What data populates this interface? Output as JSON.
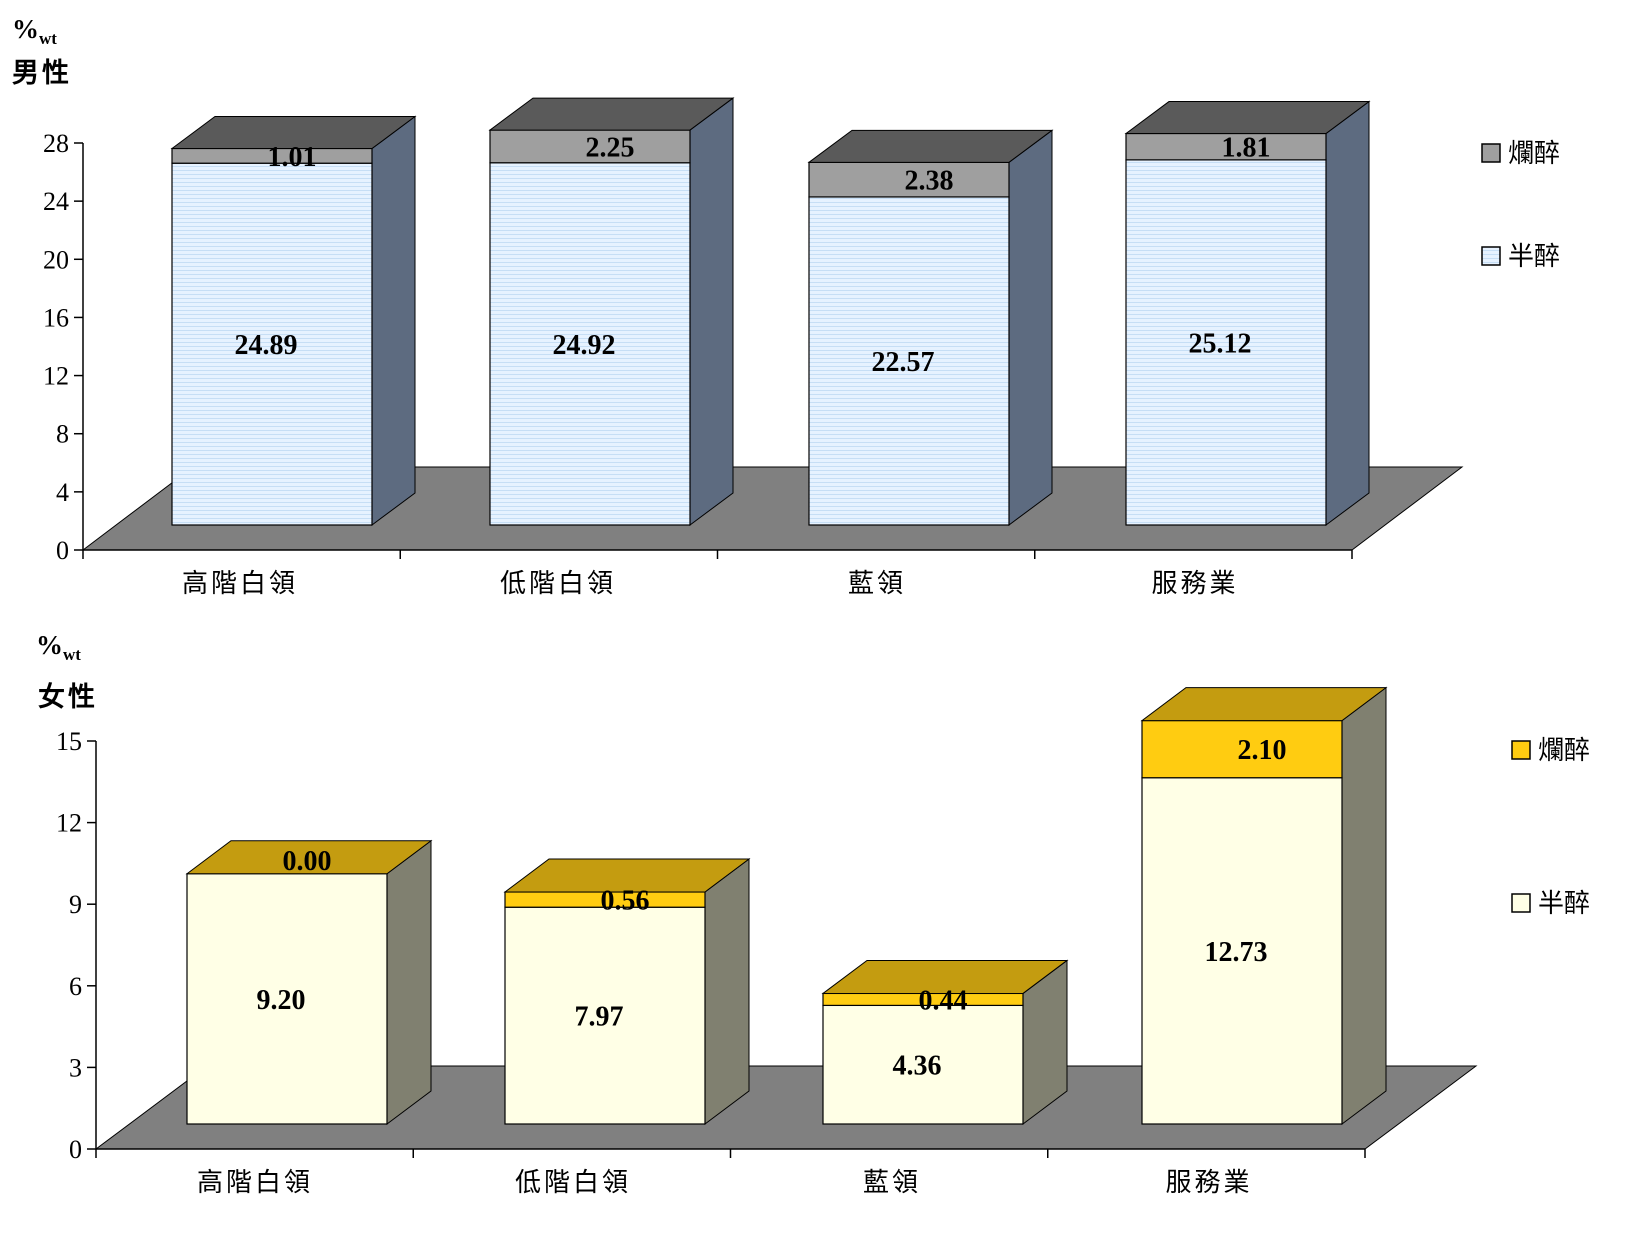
{
  "chart_data": [
    {
      "type": "bar",
      "stacked": true,
      "three_d": true,
      "title": "男性",
      "unit": "%",
      "unit_sub": "wt",
      "categories": [
        "高階白領",
        "低階白領",
        "藍領",
        "服務業"
      ],
      "ylim": [
        0,
        28
      ],
      "yticks": [
        0,
        4,
        8,
        12,
        16,
        20,
        24,
        28
      ],
      "series": [
        {
          "name": "半醉",
          "values": [
            24.89,
            24.92,
            22.57,
            25.12
          ],
          "labels": [
            "24.89",
            "24.92",
            "22.57",
            "25.12"
          ]
        },
        {
          "name": "爛醉",
          "values": [
            1.01,
            2.25,
            2.38,
            1.81
          ],
          "labels": [
            "1.01",
            "2.25",
            "2.38",
            "1.81"
          ]
        }
      ],
      "legend_position": "right",
      "legend": [
        "爛醉",
        "半醉"
      ],
      "colors": {
        "半醉": "#ddeeff",
        "爛醉": "#9f9f9f",
        "半醉_top": "#dbe7f2",
        "爛醉_top": "#5a5a5a",
        "side": "#5d6b80",
        "floor": "#808080"
      }
    },
    {
      "type": "bar",
      "stacked": true,
      "three_d": true,
      "title": "女性",
      "unit": "%",
      "unit_sub": "wt",
      "categories": [
        "高階白領",
        "低階白領",
        "藍領",
        "服務業"
      ],
      "ylim": [
        0,
        15
      ],
      "yticks": [
        0,
        3,
        6,
        9,
        12,
        15
      ],
      "series": [
        {
          "name": "半醉",
          "values": [
            9.2,
            7.97,
            4.36,
            12.73
          ],
          "labels": [
            "9.20",
            "7.97",
            "4.36",
            "12.73"
          ]
        },
        {
          "name": "爛醉",
          "values": [
            0.0,
            0.56,
            0.44,
            2.1
          ],
          "labels": [
            "0.00",
            "0.56",
            "0.44",
            "2.10"
          ]
        }
      ],
      "legend_position": "right",
      "legend": [
        "爛醉",
        "半醉"
      ],
      "colors": {
        "半醉": "#ffffe6",
        "爛醉": "#ffcc11",
        "半醉_top": "#f2f2cc",
        "爛醉_top": "#c49c10",
        "side": "#808070",
        "floor": "#808080"
      }
    }
  ]
}
